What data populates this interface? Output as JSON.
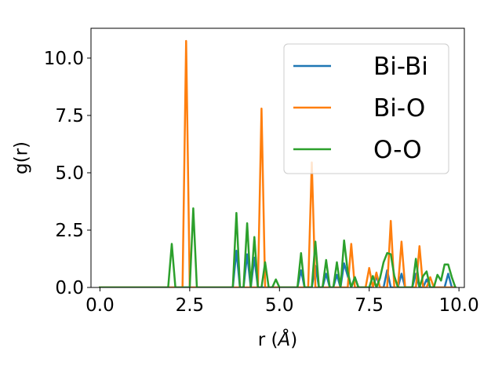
{
  "chart_data": {
    "type": "line",
    "xlabel_text": "r (",
    "xlabel_unit": "Å",
    "xlabel_close": ")",
    "ylabel": "g(r)",
    "xlim": [
      -0.25,
      10.15
    ],
    "ylim": [
      0,
      11.3
    ],
    "xticks": [
      0.0,
      2.5,
      5.0,
      7.5,
      10.0
    ],
    "xtick_labels": [
      "0.0",
      "2.5",
      "5.0",
      "7.5",
      "10.0"
    ],
    "yticks": [
      0.0,
      2.5,
      5.0,
      7.5,
      10.0
    ],
    "ytick_labels": [
      "0.0",
      "2.5",
      "5.0",
      "7.5",
      "10.0"
    ],
    "grid": false,
    "legend_position": "upper right",
    "x": [
      0.0,
      0.1,
      0.2,
      0.3,
      0.4,
      0.5,
      0.6,
      0.7,
      0.8,
      0.9,
      1.0,
      1.1,
      1.2,
      1.3,
      1.4,
      1.5,
      1.6,
      1.7,
      1.8,
      1.9,
      2.0,
      2.1,
      2.2,
      2.3,
      2.4,
      2.5,
      2.6,
      2.7,
      2.8,
      2.9,
      3.0,
      3.1,
      3.2,
      3.3,
      3.4,
      3.5,
      3.6,
      3.7,
      3.8,
      3.9,
      4.0,
      4.1,
      4.2,
      4.3,
      4.4,
      4.5,
      4.6,
      4.7,
      4.8,
      4.9,
      5.0,
      5.1,
      5.2,
      5.3,
      5.4,
      5.5,
      5.6,
      5.7,
      5.8,
      5.9,
      6.0,
      6.1,
      6.2,
      6.3,
      6.4,
      6.5,
      6.6,
      6.7,
      6.8,
      6.9,
      7.0,
      7.1,
      7.2,
      7.3,
      7.4,
      7.5,
      7.6,
      7.7,
      7.8,
      7.9,
      8.0,
      8.1,
      8.2,
      8.3,
      8.4,
      8.5,
      8.6,
      8.7,
      8.8,
      8.9,
      9.0,
      9.1,
      9.2,
      9.3,
      9.4,
      9.5,
      9.6,
      9.7,
      9.8,
      9.9
    ],
    "series": [
      {
        "name": "Bi-Bi",
        "color": "#1f77b4",
        "values": [
          0,
          0,
          0,
          0,
          0,
          0,
          0,
          0,
          0,
          0,
          0,
          0,
          0,
          0,
          0,
          0,
          0,
          0,
          0,
          0,
          0,
          0,
          0,
          0,
          0,
          0,
          0,
          0,
          0,
          0,
          0,
          0,
          0,
          0,
          0,
          0,
          0,
          0,
          1.6,
          0,
          0,
          1.45,
          0,
          1.3,
          0,
          0,
          0,
          0,
          0,
          0,
          0,
          0,
          0,
          0,
          0,
          0,
          0.75,
          0,
          0,
          0,
          0.95,
          0,
          0,
          0.6,
          0,
          0,
          0.55,
          0,
          1.05,
          0.5,
          0,
          0.45,
          0,
          0,
          0,
          0,
          0,
          0.5,
          0,
          0,
          0.75,
          0,
          0,
          0,
          0.6,
          0,
          0,
          0,
          0.6,
          0,
          0,
          0.35,
          0,
          0,
          0,
          0,
          0,
          0.6,
          0,
          0
        ]
      },
      {
        "name": "Bi-O",
        "color": "#ff7f0e",
        "values": [
          0,
          0,
          0,
          0,
          0,
          0,
          0,
          0,
          0,
          0,
          0,
          0,
          0,
          0,
          0,
          0,
          0,
          0,
          0,
          0,
          0,
          0,
          0,
          0,
          10.75,
          0,
          0,
          0,
          0,
          0,
          0,
          0,
          0,
          0,
          0,
          0,
          0,
          0,
          0,
          0,
          0,
          0,
          0,
          0,
          0,
          7.8,
          0,
          0,
          0,
          0,
          0,
          0,
          0,
          0,
          0,
          0,
          0,
          0,
          0,
          5.45,
          0,
          0,
          0,
          0,
          0,
          0,
          0,
          0,
          0,
          0,
          1.9,
          0,
          0,
          0,
          0,
          0.85,
          0,
          0.65,
          0,
          0,
          0,
          2.9,
          0,
          0,
          2.0,
          0,
          0,
          0,
          0,
          1.8,
          0,
          0,
          0.45,
          0,
          0,
          0,
          0,
          0,
          0,
          0
        ]
      },
      {
        "name": "O-O",
        "color": "#2ca02c",
        "values": [
          0,
          0,
          0,
          0,
          0,
          0,
          0,
          0,
          0,
          0,
          0,
          0,
          0,
          0,
          0,
          0,
          0,
          0,
          0,
          0,
          1.9,
          0,
          0,
          0,
          0,
          0,
          3.45,
          0,
          0,
          0,
          0,
          0,
          0,
          0,
          0,
          0,
          0,
          0,
          3.25,
          0,
          0,
          2.8,
          0,
          2.2,
          0,
          0,
          1.1,
          0,
          0,
          0.35,
          0,
          0,
          0,
          0,
          0,
          0,
          1.5,
          0,
          0,
          0,
          2.0,
          0,
          0,
          1.2,
          0,
          0,
          1.1,
          0,
          2.05,
          0.7,
          0,
          0.45,
          0,
          0,
          0,
          0,
          0.5,
          0,
          0.4,
          1.1,
          1.5,
          1.45,
          0.5,
          0,
          0,
          0,
          0,
          0,
          1.25,
          0,
          0.5,
          0.7,
          0,
          0,
          0.55,
          0.3,
          1.0,
          1.0,
          0.45,
          0
        ]
      }
    ]
  }
}
